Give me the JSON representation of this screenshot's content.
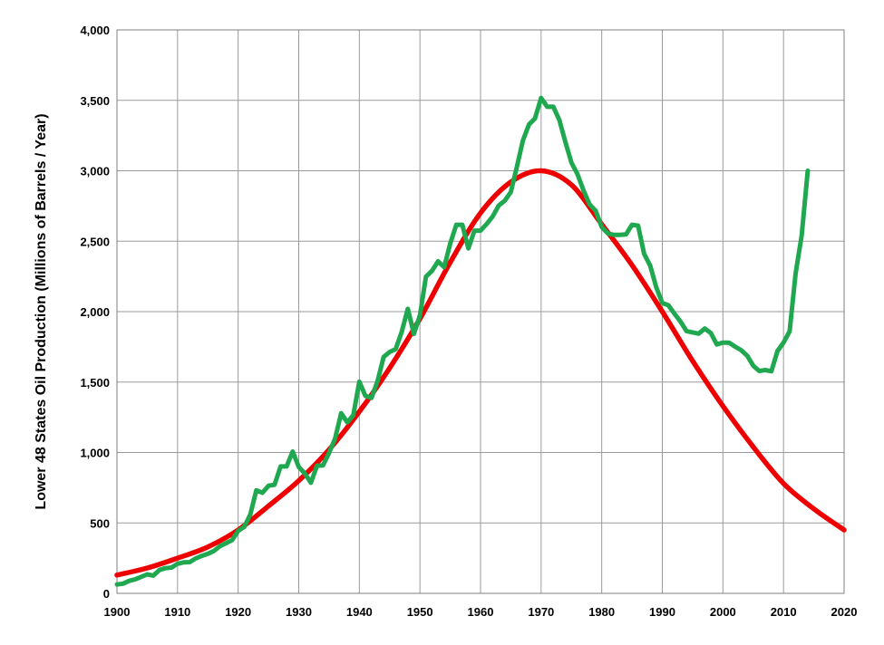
{
  "chart_data": {
    "type": "line",
    "title": "",
    "xlabel": "",
    "ylabel": "Lower 48 States Oil Production (Millions of Barrels / Year)",
    "xlim": [
      1900,
      2020
    ],
    "ylim": [
      0,
      4000
    ],
    "x_ticks": [
      "1900",
      "1910",
      "1920",
      "1930",
      "1940",
      "1950",
      "1960",
      "1970",
      "1980",
      "1990",
      "2000",
      "2010",
      "2020"
    ],
    "y_ticks": [
      "0",
      "500",
      "1,000",
      "1,500",
      "2,000",
      "2,500",
      "3,000",
      "3,500",
      "4,000"
    ],
    "grid": true,
    "legend": "none",
    "series": [
      {
        "color": "#ee0000",
        "x": [
          1900,
          1905,
          1910,
          1915,
          1920,
          1925,
          1930,
          1935,
          1940,
          1945,
          1950,
          1955,
          1960,
          1965,
          1970,
          1975,
          1980,
          1985,
          1990,
          1995,
          2000,
          2005,
          2010,
          2015,
          2020
        ],
        "values": [
          130,
          180,
          250,
          330,
          450,
          620,
          800,
          1020,
          1290,
          1600,
          1950,
          2350,
          2700,
          2920,
          3000,
          2900,
          2620,
          2330,
          2000,
          1650,
          1330,
          1040,
          780,
          600,
          450
        ]
      },
      {
        "color": "#1fa84f",
        "x": [
          1900,
          1901,
          1902,
          1903,
          1904,
          1905,
          1906,
          1907,
          1908,
          1909,
          1910,
          1911,
          1912,
          1913,
          1914,
          1915,
          1916,
          1917,
          1918,
          1919,
          1920,
          1921,
          1922,
          1923,
          1924,
          1925,
          1926,
          1927,
          1928,
          1929,
          1930,
          1931,
          1932,
          1933,
          1934,
          1935,
          1936,
          1937,
          1938,
          1939,
          1940,
          1941,
          1942,
          1943,
          1944,
          1945,
          1946,
          1947,
          1948,
          1949,
          1950,
          1951,
          1952,
          1953,
          1954,
          1955,
          1956,
          1957,
          1958,
          1959,
          1960,
          1961,
          1962,
          1963,
          1964,
          1965,
          1966,
          1967,
          1968,
          1969,
          1970,
          1971,
          1972,
          1973,
          1974,
          1975,
          1976,
          1977,
          1978,
          1979,
          1980,
          1981,
          1982,
          1983,
          1984,
          1985,
          1986,
          1987,
          1988,
          1989,
          1990,
          1991,
          1992,
          1993,
          1994,
          1995,
          1996,
          1997,
          1998,
          1999,
          2000,
          2001,
          2002,
          2003,
          2004,
          2005,
          2006,
          2007,
          2008,
          2009,
          2010,
          2011,
          2012,
          2013,
          2014
        ],
        "values": [
          63,
          69,
          89,
          100,
          117,
          135,
          126,
          166,
          179,
          183,
          210,
          220,
          222,
          248,
          266,
          281,
          301,
          335,
          356,
          378,
          443,
          472,
          558,
          732,
          714,
          764,
          771,
          901,
          901,
          1007,
          898,
          851,
          785,
          906,
          908,
          997,
          1099,
          1279,
          1214,
          1265,
          1503,
          1402,
          1387,
          1506,
          1678,
          1714,
          1734,
          1857,
          2020,
          1842,
          1974,
          2248,
          2290,
          2357,
          2315,
          2484,
          2617,
          2617,
          2449,
          2575,
          2575,
          2622,
          2676,
          2753,
          2787,
          2849,
          3028,
          3216,
          3329,
          3372,
          3517,
          3454,
          3455,
          3361,
          3203,
          3057,
          2976,
          2860,
          2761,
          2716,
          2600,
          2555,
          2545,
          2545,
          2548,
          2617,
          2610,
          2411,
          2327,
          2173,
          2062,
          2045,
          1985,
          1929,
          1861,
          1853,
          1844,
          1880,
          1848,
          1767,
          1780,
          1780,
          1752,
          1727,
          1687,
          1616,
          1579,
          1585,
          1577,
          1720,
          1780,
          1860,
          2270,
          2540,
          3000
        ]
      }
    ]
  }
}
